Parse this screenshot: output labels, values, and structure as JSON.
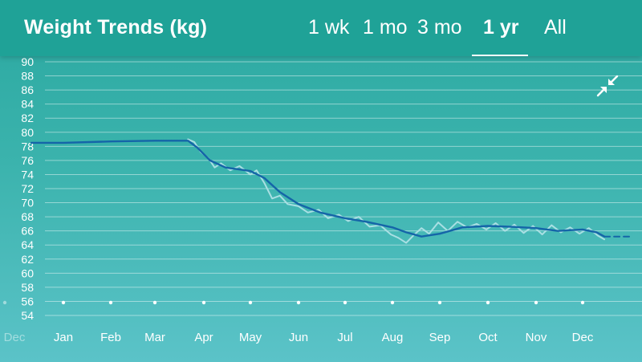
{
  "header": {
    "title": "Weight Trends (kg)",
    "tabs": [
      {
        "label": "1 wk",
        "active": false
      },
      {
        "label": "1 mo",
        "active": false
      },
      {
        "label": "3 mo",
        "active": false
      },
      {
        "label": "1 yr",
        "active": true
      },
      {
        "label": "All",
        "active": false
      }
    ]
  },
  "icons": {
    "collapse": "collapse-arrows-icon"
  },
  "colors": {
    "header_bg": "#1fa297",
    "trend_line": "#1565a8",
    "raw_line": "#a9dfe3",
    "gridline": "rgba(255,255,255,0.45)"
  },
  "chart_data": {
    "type": "line",
    "title": "Weight Trends (kg)",
    "ylim": [
      54,
      90
    ],
    "yticks": [
      54,
      56,
      58,
      60,
      62,
      64,
      66,
      68,
      70,
      72,
      74,
      76,
      78,
      80,
      82,
      84,
      86,
      88,
      90
    ],
    "xticks": [
      "Dec",
      "Jan",
      "Feb",
      "Mar",
      "Apr",
      "May",
      "Jun",
      "Jul",
      "Aug",
      "Sep",
      "Oct",
      "Nov",
      "Dec"
    ],
    "grid": true,
    "series": [
      {
        "style": "trend",
        "x": [
          "Dec 15",
          "Jan 1",
          "Feb 1",
          "Mar 1",
          "Mar 22",
          "Mar 28",
          "Apr 5",
          "Apr 15",
          "May 1",
          "May 10",
          "May 20",
          "Jun 1",
          "Jun 15",
          "Jul 1",
          "Jul 15",
          "Aug 1",
          "Aug 10",
          "Aug 20",
          "Sep 1",
          "Sep 15",
          "Oct 1",
          "Oct 15",
          "Nov 1",
          "Nov 15",
          "Dec 1",
          "Dec 10",
          "Dec 15"
        ],
        "y": [
          78.5,
          78.5,
          78.7,
          78.8,
          78.8,
          77.8,
          76.0,
          75.0,
          74.5,
          73.5,
          71.5,
          69.8,
          68.6,
          67.8,
          67.3,
          66.5,
          65.8,
          65.2,
          65.6,
          66.5,
          66.7,
          66.6,
          66.4,
          66.0,
          66.2,
          65.8,
          65.2
        ]
      },
      {
        "style": "raw",
        "x": [
          "Mar 22",
          "Mar 26",
          "Mar 30",
          "Apr 4",
          "Apr 8",
          "Apr 12",
          "Apr 18",
          "Apr 24",
          "May 1",
          "May 5",
          "May 10",
          "May 15",
          "May 20",
          "May 25",
          "Jun 1",
          "Jun 7",
          "Jun 14",
          "Jun 20",
          "Jun 27",
          "Jul 3",
          "Jul 10",
          "Jul 17",
          "Jul 24",
          "Jul 31",
          "Aug 5",
          "Aug 10",
          "Aug 15",
          "Aug 20",
          "Aug 25",
          "Aug 31",
          "Sep 6",
          "Sep 12",
          "Sep 18",
          "Sep 24",
          "Sep 30",
          "Oct 6",
          "Oct 12",
          "Oct 18",
          "Oct 24",
          "Oct 30",
          "Nov 5",
          "Nov 11",
          "Nov 17",
          "Nov 23",
          "Nov 29",
          "Dec 5",
          "Dec 11",
          "Dec 15"
        ],
        "y": [
          79.0,
          78.6,
          77.2,
          76.3,
          75.0,
          75.6,
          74.6,
          75.2,
          74.0,
          74.6,
          72.8,
          70.6,
          71.0,
          69.8,
          69.5,
          68.6,
          69.0,
          67.8,
          68.3,
          67.4,
          68.0,
          66.6,
          66.8,
          65.5,
          65.0,
          64.3,
          65.4,
          66.4,
          65.6,
          67.2,
          66.0,
          67.3,
          66.5,
          67.0,
          66.2,
          67.1,
          66.0,
          66.9,
          65.7,
          66.7,
          65.5,
          66.8,
          65.8,
          66.5,
          65.6,
          66.4,
          65.3,
          64.8
        ]
      },
      {
        "style": "projection",
        "x": [
          "Dec 15",
          "Dec 31"
        ],
        "y": [
          65.2,
          65.2
        ]
      }
    ]
  }
}
